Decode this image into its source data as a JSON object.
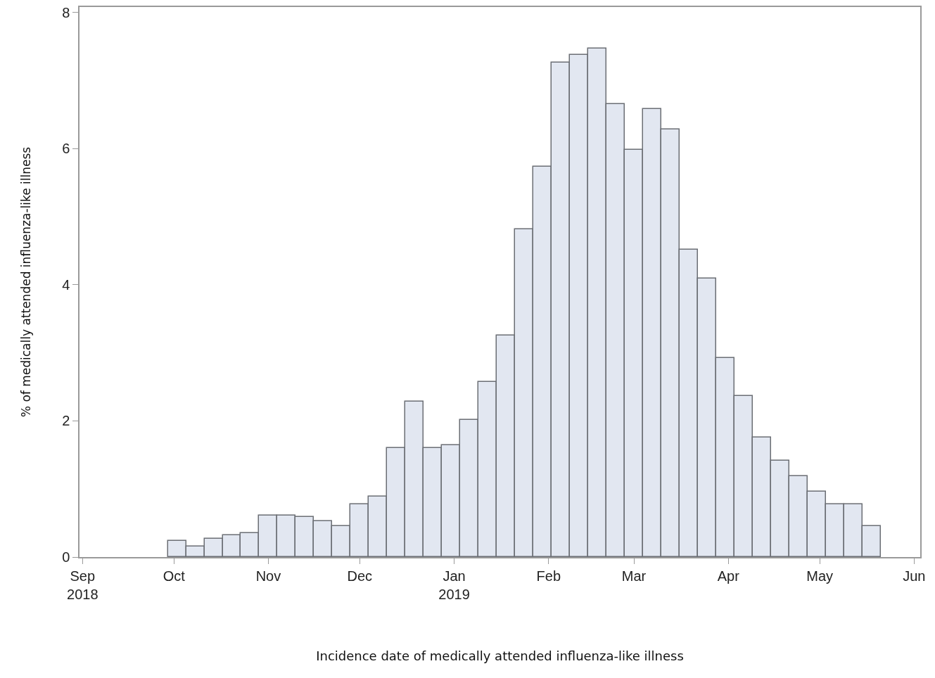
{
  "chart_data": {
    "type": "histogram",
    "xlabel": "Incidence date of medically attended influenza-like illness",
    "ylabel": "% of medically attended influenza-like illness",
    "bins": [
      "2018-09-29",
      "2018-10-05",
      "2018-10-11",
      "2018-10-17",
      "2018-10-23",
      "2018-10-29",
      "2018-11-04",
      "2018-11-10",
      "2018-11-16",
      "2018-11-22",
      "2018-11-28",
      "2018-12-04",
      "2018-12-10",
      "2018-12-16",
      "2018-12-22",
      "2018-12-28",
      "2019-01-03",
      "2019-01-09",
      "2019-01-15",
      "2019-01-21",
      "2019-01-27",
      "2019-02-02",
      "2019-02-08",
      "2019-02-14",
      "2019-02-20",
      "2019-02-26",
      "2019-03-04",
      "2019-03-10",
      "2019-03-16",
      "2019-03-22",
      "2019-03-28",
      "2019-04-03",
      "2019-04-09",
      "2019-04-15",
      "2019-04-21",
      "2019-04-27",
      "2019-05-03",
      "2019-05-09",
      "2019-05-15",
      "2019-05-21"
    ],
    "values": [
      0.24,
      0.16,
      0.27,
      0.32,
      0.35,
      0.61,
      0.61,
      0.59,
      0.53,
      0.45,
      0.78,
      0.89,
      1.6,
      2.28,
      1.6,
      1.64,
      2.02,
      2.57,
      3.25,
      4.82,
      5.73,
      7.26,
      7.38,
      7.47,
      6.65,
      5.98,
      6.58,
      6.28,
      4.52,
      4.09,
      2.92,
      2.37,
      1.76,
      1.42,
      1.19,
      0.96,
      0.77,
      0.77,
      0.45
    ],
    "color": "#e2e7f1",
    "xlim": [
      "2018-08-31",
      "2019-06-03"
    ],
    "xticks": [
      {
        "value": "2018-09-01",
        "label": "Sep\n2018"
      },
      {
        "value": "2018-10-01",
        "label": "Oct"
      },
      {
        "value": "2018-11-01",
        "label": "Nov"
      },
      {
        "value": "2018-12-01",
        "label": "Dec"
      },
      {
        "value": "2019-01-01",
        "label": "Jan\n2019"
      },
      {
        "value": "2019-02-01",
        "label": "Feb"
      },
      {
        "value": "2019-03-01",
        "label": "Mar"
      },
      {
        "value": "2019-04-01",
        "label": "Apr"
      },
      {
        "value": "2019-05-01",
        "label": "May"
      },
      {
        "value": "2019-06-01",
        "label": "Jun"
      }
    ],
    "ylim": [
      0,
      8.08
    ],
    "yticks": [
      0,
      2,
      4,
      6,
      8
    ],
    "grid": false
  }
}
